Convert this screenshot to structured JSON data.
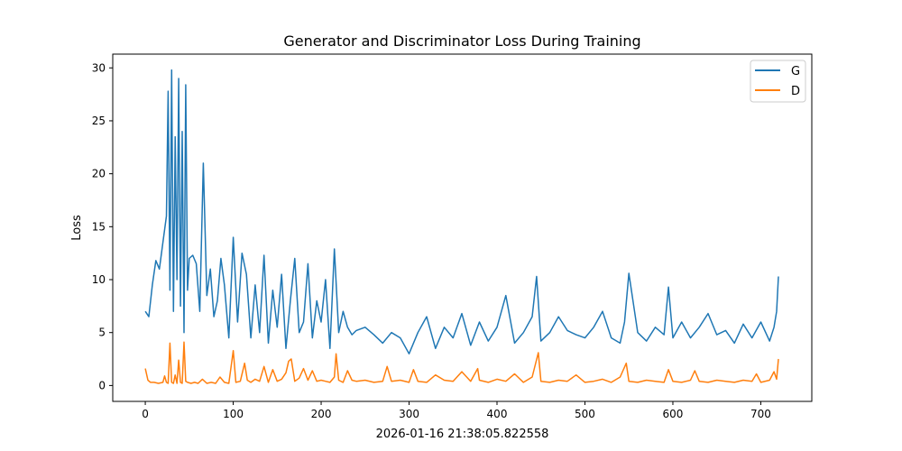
{
  "chart_data": {
    "type": "line",
    "title": "Generator and Discriminator Loss During Training",
    "xlabel": "2026-01-16 21:38:05.822558",
    "ylabel": "Loss",
    "xlim": [
      -37,
      758
    ],
    "ylim": [
      -1.5,
      31.3
    ],
    "xticks": [
      0,
      100,
      200,
      300,
      400,
      500,
      600,
      700
    ],
    "yticks": [
      0,
      5,
      10,
      15,
      20,
      25,
      30
    ],
    "grid": false,
    "legend_position": "top-right",
    "colors": {
      "G": "#1f77b4",
      "D": "#ff7f0e"
    },
    "series": [
      {
        "name": "G",
        "x": [
          0,
          4,
          8,
          12,
          16,
          20,
          24,
          26,
          28,
          30,
          32,
          34,
          36,
          38,
          40,
          42,
          44,
          46,
          48,
          50,
          54,
          58,
          62,
          66,
          70,
          74,
          78,
          82,
          86,
          90,
          95,
          100,
          105,
          110,
          115,
          120,
          125,
          130,
          135,
          140,
          145,
          150,
          155,
          160,
          165,
          170,
          175,
          180,
          185,
          190,
          195,
          200,
          205,
          210,
          215,
          220,
          225,
          230,
          235,
          240,
          250,
          260,
          270,
          280,
          290,
          300,
          310,
          320,
          330,
          340,
          350,
          360,
          370,
          380,
          390,
          400,
          410,
          420,
          430,
          440,
          445,
          450,
          460,
          470,
          480,
          490,
          500,
          510,
          520,
          530,
          540,
          545,
          550,
          560,
          570,
          580,
          590,
          595,
          600,
          610,
          620,
          630,
          640,
          650,
          660,
          670,
          680,
          690,
          700,
          710,
          715,
          718,
          720
        ],
        "values": [
          7.0,
          6.5,
          9.5,
          11.8,
          11.0,
          13.5,
          16.0,
          27.8,
          9.0,
          29.8,
          7.0,
          23.5,
          10.0,
          29.0,
          7.5,
          24.0,
          5.0,
          28.4,
          9.0,
          12.0,
          12.3,
          11.5,
          7.0,
          21.0,
          8.5,
          11.0,
          6.5,
          8.0,
          12.0,
          9.5,
          4.5,
          14.0,
          6.0,
          12.5,
          10.5,
          4.5,
          9.5,
          5.0,
          12.3,
          4.0,
          9.0,
          5.5,
          10.5,
          3.5,
          8.0,
          12.0,
          5.0,
          6.0,
          11.5,
          4.5,
          8.0,
          6.0,
          10.0,
          3.5,
          12.9,
          5.0,
          7.0,
          5.5,
          4.8,
          5.2,
          5.5,
          4.8,
          4.0,
          5.0,
          4.5,
          3.0,
          5.0,
          6.5,
          3.5,
          5.5,
          4.5,
          6.8,
          3.8,
          6.0,
          4.2,
          5.5,
          8.5,
          4.0,
          5.0,
          6.5,
          10.3,
          4.2,
          5.0,
          6.5,
          5.2,
          4.8,
          4.5,
          5.5,
          7.0,
          4.5,
          4.0,
          6.0,
          10.6,
          5.0,
          4.2,
          5.5,
          4.8,
          9.3,
          4.5,
          6.0,
          4.5,
          5.5,
          6.8,
          4.8,
          5.2,
          4.0,
          5.8,
          4.5,
          6.0,
          4.2,
          5.5,
          7.0,
          10.3
        ]
      },
      {
        "name": "D",
        "x": [
          0,
          3,
          6,
          10,
          15,
          20,
          22,
          24,
          26,
          28,
          30,
          32,
          34,
          36,
          38,
          40,
          42,
          44,
          46,
          48,
          52,
          56,
          60,
          65,
          70,
          75,
          80,
          85,
          90,
          95,
          100,
          103,
          108,
          113,
          116,
          120,
          125,
          130,
          135,
          140,
          145,
          150,
          155,
          160,
          163,
          166,
          170,
          175,
          180,
          185,
          190,
          195,
          200,
          205,
          210,
          215,
          217,
          220,
          225,
          230,
          235,
          240,
          250,
          260,
          270,
          275,
          280,
          290,
          300,
          305,
          310,
          320,
          330,
          340,
          350,
          360,
          370,
          378,
          380,
          390,
          400,
          410,
          420,
          430,
          440,
          447,
          450,
          460,
          470,
          480,
          490,
          500,
          510,
          520,
          530,
          540,
          547,
          550,
          560,
          570,
          580,
          590,
          595,
          600,
          610,
          620,
          625,
          630,
          640,
          650,
          660,
          670,
          680,
          690,
          695,
          700,
          710,
          715,
          718,
          720
        ],
        "values": [
          1.6,
          0.5,
          0.3,
          0.3,
          0.2,
          0.3,
          0.9,
          0.3,
          0.2,
          4.0,
          0.3,
          0.2,
          1.0,
          0.2,
          2.4,
          0.3,
          0.2,
          4.1,
          0.4,
          0.3,
          0.2,
          0.3,
          0.2,
          0.6,
          0.2,
          0.3,
          0.2,
          0.8,
          0.3,
          0.2,
          3.3,
          0.3,
          0.4,
          2.1,
          0.5,
          0.3,
          0.6,
          0.4,
          1.8,
          0.3,
          1.5,
          0.4,
          0.6,
          1.2,
          2.3,
          2.5,
          0.4,
          0.7,
          1.6,
          0.5,
          1.4,
          0.4,
          0.5,
          0.4,
          0.3,
          0.8,
          3.0,
          0.5,
          0.3,
          1.4,
          0.5,
          0.4,
          0.5,
          0.3,
          0.4,
          1.8,
          0.4,
          0.5,
          0.3,
          1.5,
          0.4,
          0.3,
          1.0,
          0.5,
          0.4,
          1.3,
          0.4,
          1.6,
          0.5,
          0.3,
          0.6,
          0.4,
          1.1,
          0.3,
          0.8,
          3.1,
          0.4,
          0.3,
          0.5,
          0.4,
          1.0,
          0.3,
          0.4,
          0.6,
          0.3,
          0.8,
          2.1,
          0.4,
          0.3,
          0.5,
          0.4,
          0.3,
          1.5,
          0.4,
          0.3,
          0.5,
          1.4,
          0.4,
          0.3,
          0.5,
          0.4,
          0.3,
          0.5,
          0.4,
          1.1,
          0.3,
          0.5,
          1.3,
          0.6,
          2.5
        ]
      }
    ]
  }
}
